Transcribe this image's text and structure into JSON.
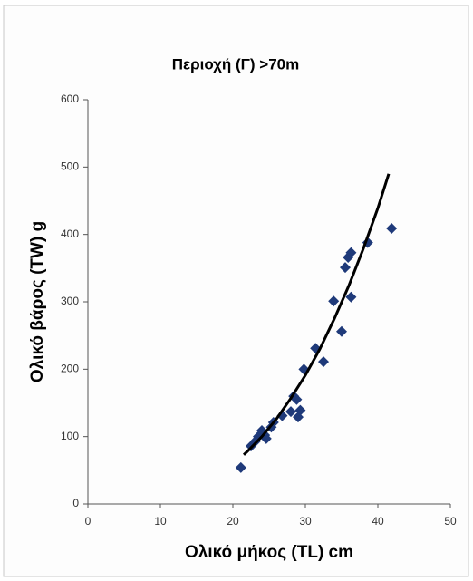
{
  "chart_data": {
    "type": "scatter",
    "title": "Περιοχή (Γ) >70m",
    "x_label": "Ολικό μήκος (TL) cm",
    "y_label": "Ολικό βάρος (TW) g",
    "xlim": [
      0,
      50
    ],
    "xticks": [
      0,
      10,
      20,
      30,
      40,
      50
    ],
    "ylim": [
      0,
      600
    ],
    "yticks": [
      0,
      100,
      200,
      300,
      400,
      500,
      600
    ],
    "grid": false,
    "series": [
      {
        "type": "scatter",
        "color": "#1f3a7a",
        "x": [
          21.1,
          22.5,
          23.1,
          23.5,
          24.0,
          24.4,
          24.6,
          25.3,
          25.6,
          26.8,
          28.0,
          28.4,
          28.8,
          29.0,
          29.3,
          29.8,
          31.4,
          32.5,
          33.9,
          35.0,
          35.5,
          35.9,
          36.3,
          36.3,
          38.6,
          41.9
        ],
        "values": [
          54,
          86,
          93,
          100,
          109,
          102,
          97,
          114,
          121,
          131,
          137,
          160,
          155,
          129,
          139,
          200,
          231,
          211,
          301,
          256,
          351,
          366,
          373,
          307,
          388,
          409
        ]
      },
      {
        "type": "line",
        "color": "#000000",
        "x": [
          21.5,
          22,
          24,
          26,
          28,
          30,
          32,
          34,
          36,
          38,
          40,
          41.5
        ],
        "values": [
          73,
          78,
          100,
          126,
          157,
          191,
          230,
          275,
          324,
          379,
          439,
          490
        ]
      }
    ]
  }
}
